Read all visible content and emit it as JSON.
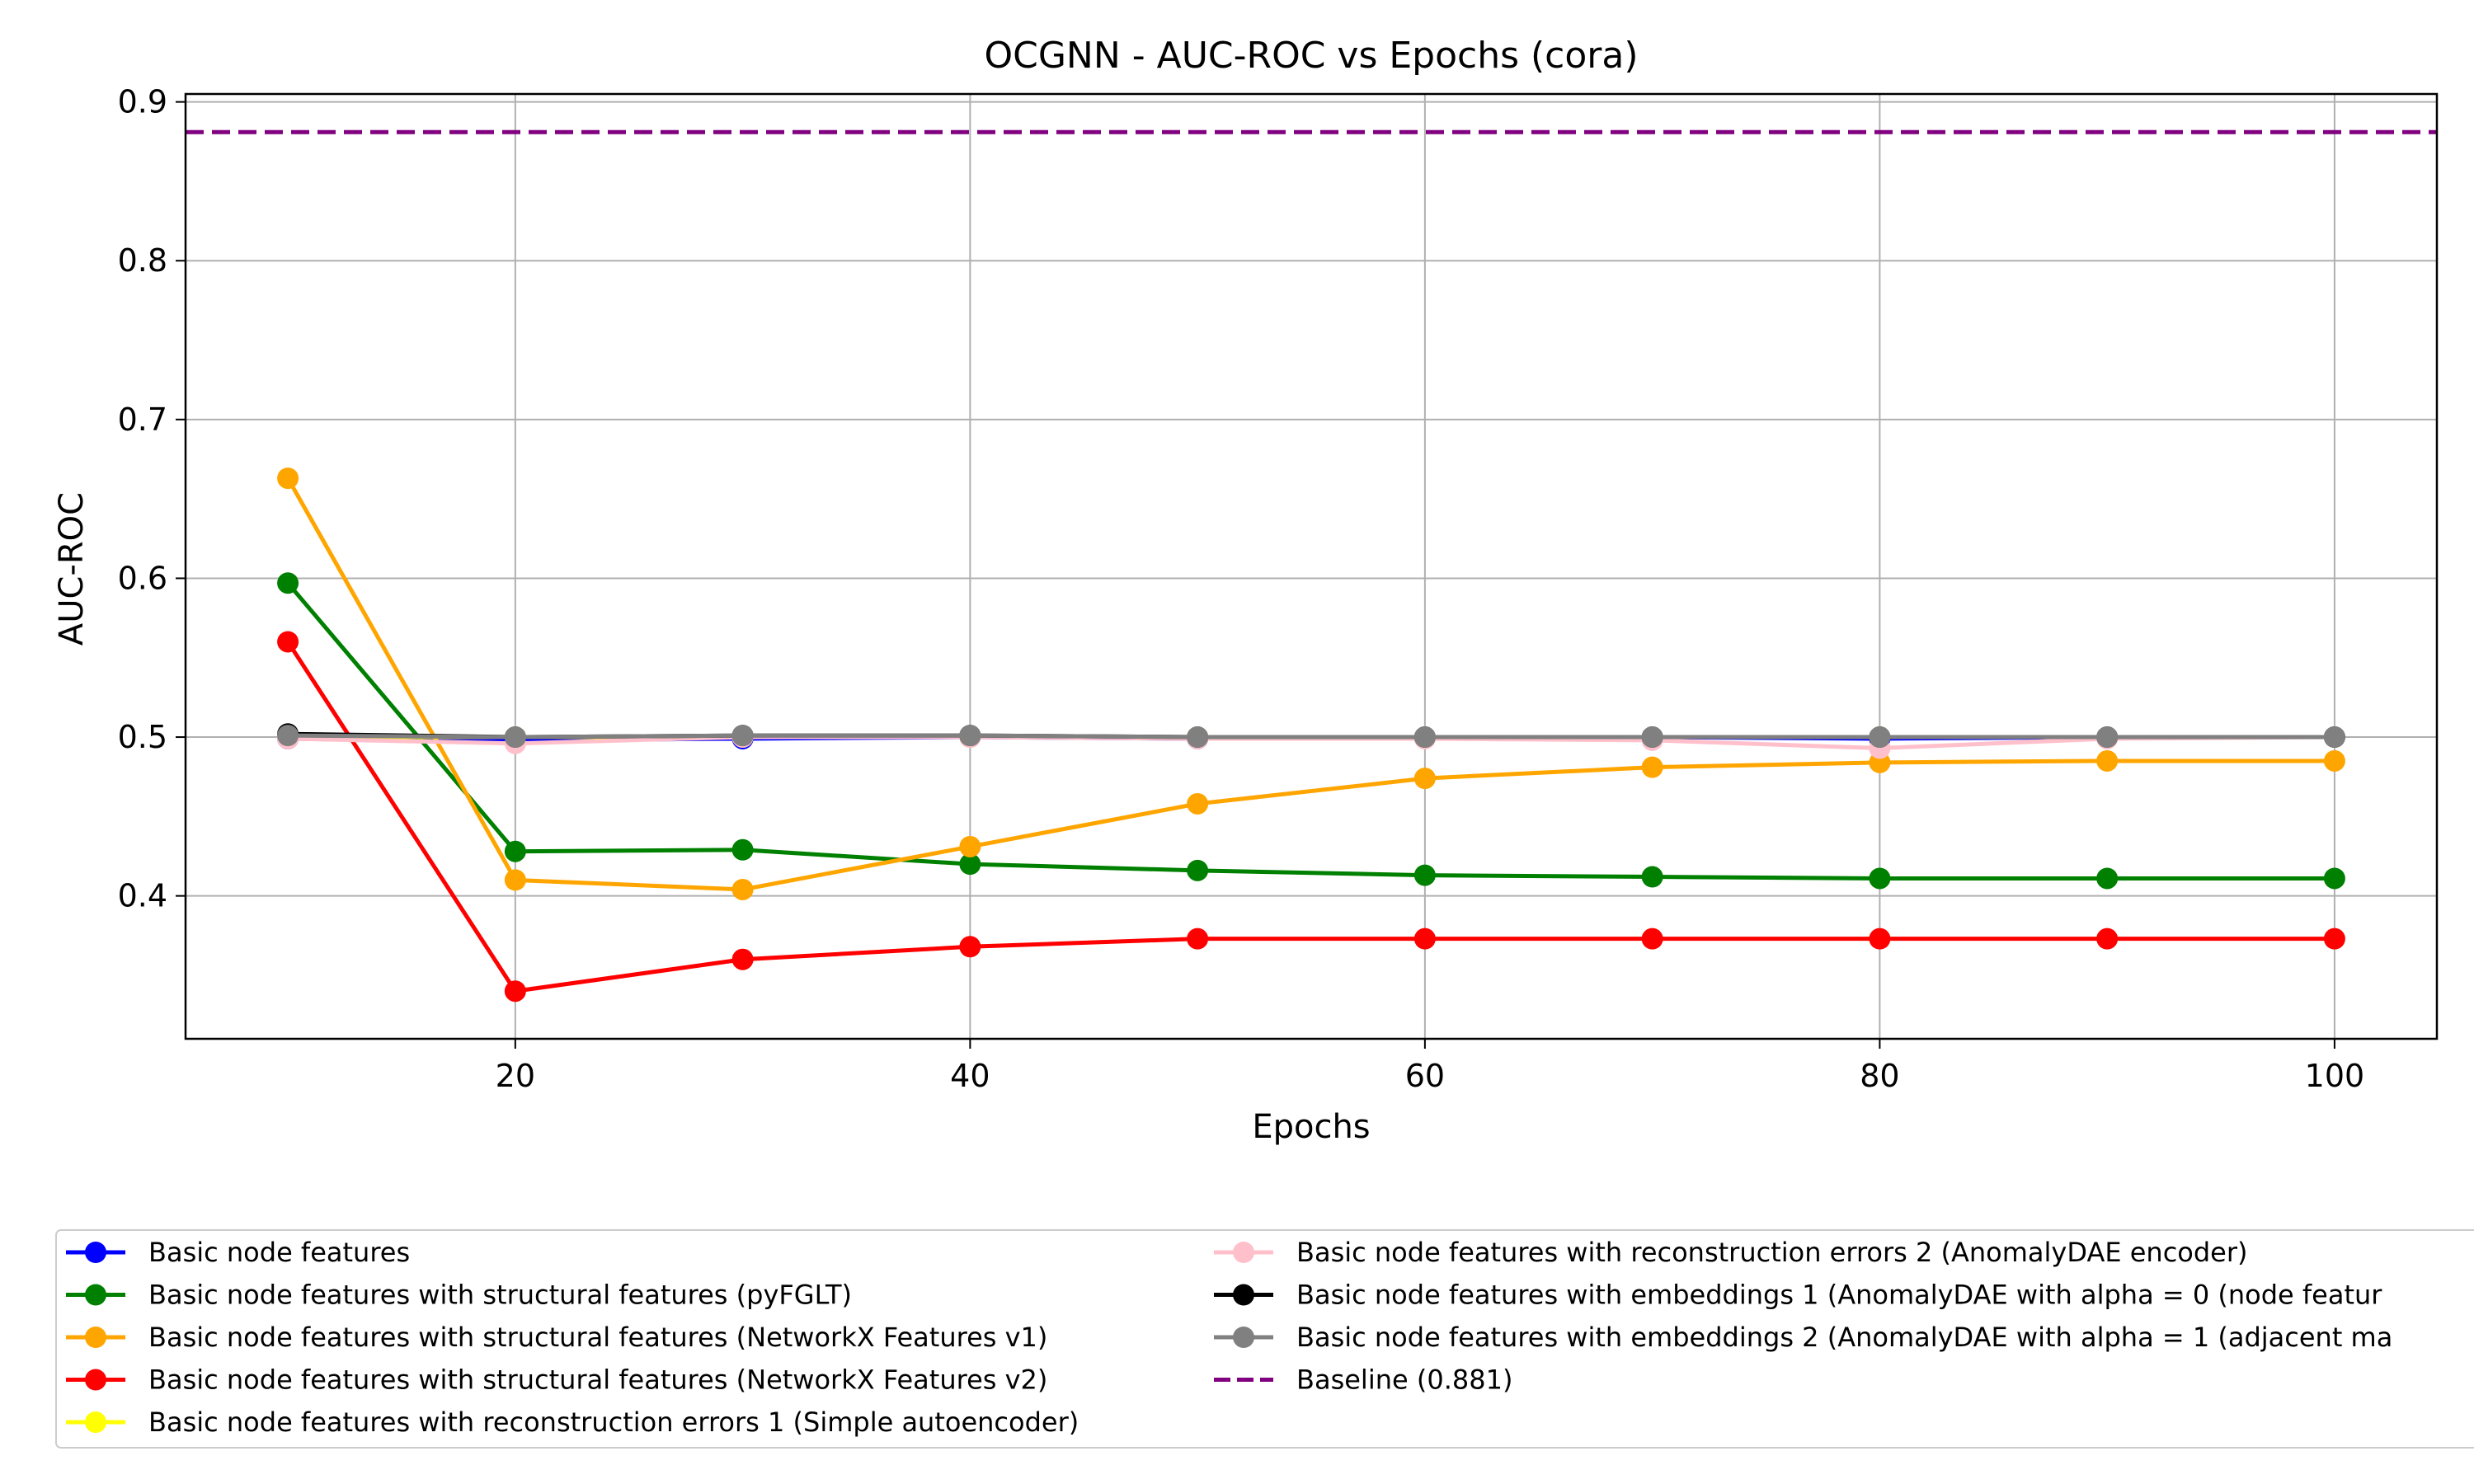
{
  "chart_data": {
    "type": "line",
    "title": "OCGNN - AUC-ROC vs Epochs (cora)",
    "xlabel": "Epochs",
    "ylabel": "AUC-ROC",
    "x": [
      10,
      20,
      30,
      40,
      50,
      60,
      70,
      80,
      90,
      100
    ],
    "xlim": [
      5.5,
      104.5
    ],
    "ylim": [
      0.31,
      0.905
    ],
    "xticks": [
      20,
      40,
      60,
      80,
      100
    ],
    "yticks": [
      0.4,
      0.5,
      0.6,
      0.7,
      0.8,
      0.9
    ],
    "xtick_labels": [
      "20",
      "40",
      "60",
      "80",
      "100"
    ],
    "ytick_labels": [
      "0.4",
      "0.5",
      "0.6",
      "0.7",
      "0.8",
      "0.9"
    ],
    "grid": true,
    "legend_position": "bottom",
    "series": [
      {
        "name": "Basic node features",
        "color": "#0000ff",
        "values": [
          0.499,
          0.498,
          0.499,
          0.5,
          0.499,
          0.5,
          0.5,
          0.499,
          0.5,
          0.5
        ]
      },
      {
        "name": "Basic node features with structural features (pyFGLT)",
        "color": "#008000",
        "values": [
          0.597,
          0.428,
          0.429,
          0.42,
          0.416,
          0.413,
          0.412,
          0.411,
          0.411,
          0.411
        ]
      },
      {
        "name": "Basic node features with structural features (NetworkX Features v1)",
        "color": "#ffa500",
        "values": [
          0.663,
          0.41,
          0.404,
          0.431,
          0.458,
          0.474,
          0.481,
          0.484,
          0.485,
          0.485
        ]
      },
      {
        "name": "Basic node features with structural features (NetworkX Features v2)",
        "color": "#ff0000",
        "values": [
          0.56,
          0.34,
          0.36,
          0.368,
          0.373,
          0.373,
          0.373,
          0.373,
          0.373,
          0.373
        ]
      },
      {
        "name": "Basic node features with reconstruction errors 1 (Simple autoencoder)",
        "color": "#ffff00",
        "values": [
          0.5,
          0.5,
          0.5,
          0.5,
          0.5,
          0.5,
          0.5,
          0.5,
          0.5,
          0.5
        ]
      },
      {
        "name": "Basic node features with reconstruction errors 2 (AnomalyDAE encoder)",
        "color": "#ffc0cb",
        "values": [
          0.499,
          0.496,
          0.5,
          0.5,
          0.499,
          0.499,
          0.498,
          0.493,
          0.499,
          0.5
        ]
      },
      {
        "name": "Basic node features with embeddings 1 (AnomalyDAE with alpha = 0 (node featur",
        "color": "#000000",
        "values": [
          0.502,
          0.5,
          0.501,
          0.501,
          0.5,
          0.5,
          0.5,
          0.5,
          0.5,
          0.5
        ]
      },
      {
        "name": "Basic node features with embeddings 2 (AnomalyDAE with alpha = 1 (adjacent ma",
        "color": "#808080",
        "values": [
          0.501,
          0.5,
          0.501,
          0.501,
          0.5,
          0.5,
          0.5,
          0.5,
          0.5,
          0.5
        ]
      }
    ],
    "baseline": {
      "name": "Baseline (0.881)",
      "value": 0.881,
      "color": "#800080"
    }
  }
}
